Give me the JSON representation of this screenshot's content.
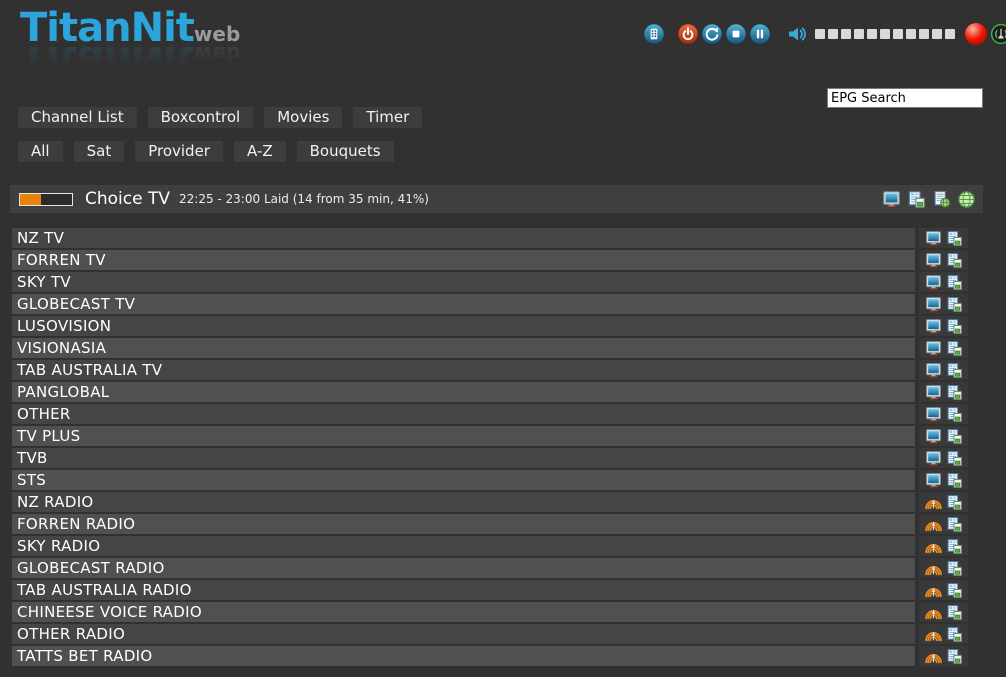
{
  "app": {
    "logo_title": "TitanNit",
    "logo_suffix": "web"
  },
  "controls": {
    "buttons": [
      {
        "name": "remote",
        "icon": "remote-icon"
      },
      {
        "name": "power",
        "icon": "power-icon"
      },
      {
        "name": "restart",
        "icon": "restart-icon"
      },
      {
        "name": "stop",
        "icon": "stop-icon"
      },
      {
        "name": "pause",
        "icon": "pause-icon"
      }
    ],
    "volume": {
      "icon": "speaker-icon",
      "segments": 11
    },
    "record": {
      "icon": "record-icon"
    },
    "signal": {
      "icon": "signal-icon"
    }
  },
  "search": {
    "value": "EPG Search"
  },
  "nav": {
    "primary": [
      "Channel List",
      "Boxcontrol",
      "Movies",
      "Timer"
    ],
    "filters": [
      "All",
      "Sat",
      "Provider",
      "A-Z",
      "Bouquets"
    ]
  },
  "now_playing": {
    "channel": "Choice TV",
    "info": "22:25 - 23:00 Laid (14 from 35 min, 41%)",
    "progress_percent": 41,
    "actions": [
      "tv-stream-icon",
      "epg-copy-icon",
      "epg-web-icon",
      "web-globe-icon"
    ]
  },
  "channels": [
    {
      "name": "NZ TV",
      "type": "tv"
    },
    {
      "name": "FORREN TV",
      "type": "tv"
    },
    {
      "name": "SKY TV",
      "type": "tv"
    },
    {
      "name": "GLOBECAST TV",
      "type": "tv"
    },
    {
      "name": "LUSOVISION",
      "type": "tv"
    },
    {
      "name": "VISIONASIA",
      "type": "tv"
    },
    {
      "name": "TAB AUSTRALIA TV",
      "type": "tv"
    },
    {
      "name": "PANGLOBAL",
      "type": "tv"
    },
    {
      "name": "OTHER",
      "type": "tv"
    },
    {
      "name": "TV PLUS",
      "type": "tv"
    },
    {
      "name": "TVB",
      "type": "tv"
    },
    {
      "name": "STS",
      "type": "tv"
    },
    {
      "name": "NZ RADIO",
      "type": "radio"
    },
    {
      "name": "FORREN RADIO",
      "type": "radio"
    },
    {
      "name": "SKY RADIO",
      "type": "radio"
    },
    {
      "name": "GLOBECAST RADIO",
      "type": "radio"
    },
    {
      "name": "TAB AUSTRALIA RADIO",
      "type": "radio"
    },
    {
      "name": "CHINEESE VOICE RADIO",
      "type": "radio"
    },
    {
      "name": "OTHER RADIO",
      "type": "radio"
    },
    {
      "name": "TATTS BET RADIO",
      "type": "radio"
    }
  ],
  "colors": {
    "background": "#313131",
    "panel": "#3f3f3f",
    "button": "#3d3d3d",
    "row_dark": "#454545",
    "row_light": "#505050",
    "accent_blue": "#2ba5db",
    "progress_orange": "#e8820c",
    "record_red": "#e41300",
    "signal_green": "#3fae49",
    "volume_square": "#d9d9d9"
  }
}
